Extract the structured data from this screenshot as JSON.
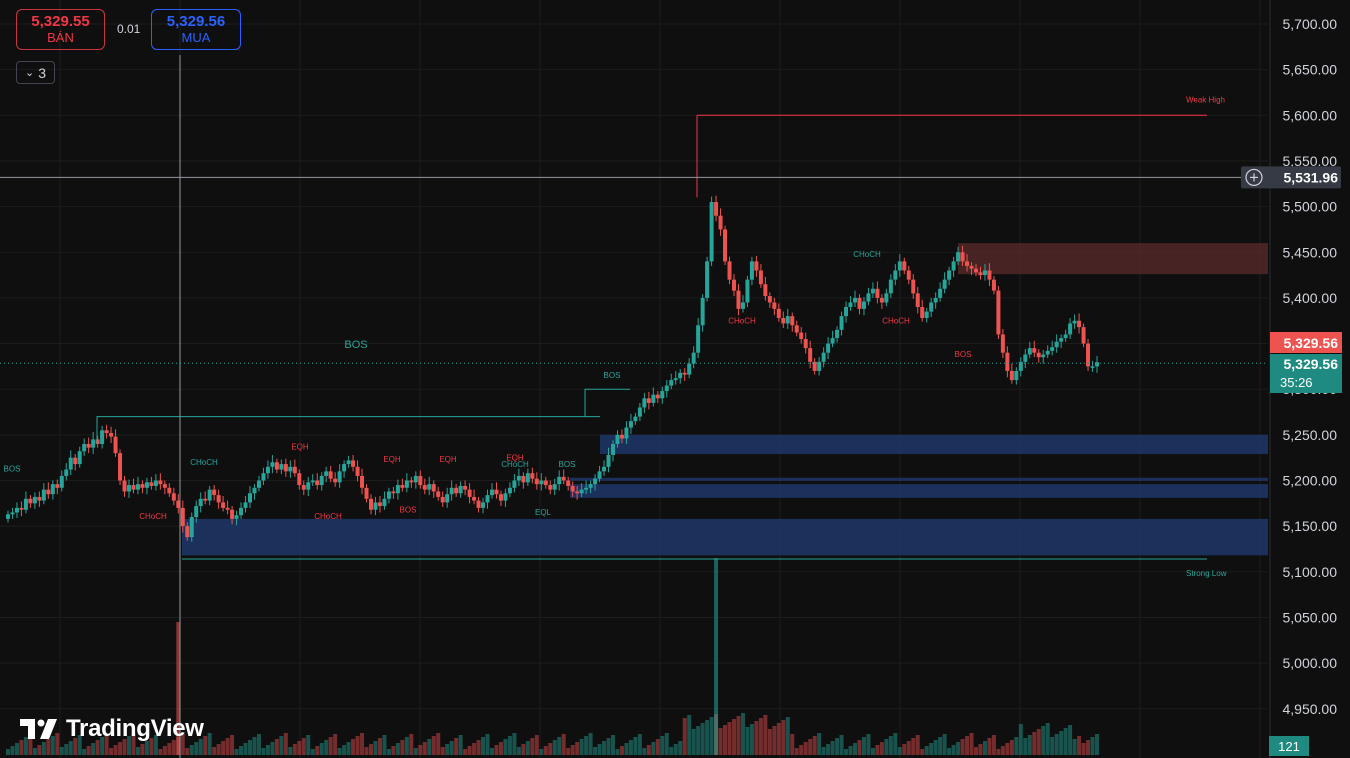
{
  "trade_panel": {
    "sell_price": "5,329.55",
    "sell_label": "BÁN",
    "spread": "0.01",
    "buy_price": "5,329.56",
    "buy_label": "MUA"
  },
  "indicator_toggle": {
    "count": "3"
  },
  "branding": {
    "logo_text": "TradingView"
  },
  "colors": {
    "background": "#0f0f0f",
    "up": "#26a69a",
    "down": "#ef5350",
    "grid": "#1c1c1c",
    "demand_zone": "#1e3a6e",
    "supply_zone": "#5c2b2b"
  },
  "chart_data": {
    "type": "candlestick",
    "ylim": [
      4920,
      5720
    ],
    "y_ticks": [
      "5,700.00",
      "5,650.00",
      "5,600.00",
      "5,550.00",
      "5,500.00",
      "5,450.00",
      "5,400.00",
      "5,350.00",
      "5,300.00",
      "5,250.00",
      "5,200.00",
      "5,150.00",
      "5,100.00",
      "5,050.00",
      "5,000.00",
      "4,950.00"
    ],
    "y_tick_values": [
      5700,
      5650,
      5600,
      5550,
      5500,
      5450,
      5400,
      5350,
      5300,
      5250,
      5200,
      5150,
      5100,
      5050,
      5000,
      4950
    ],
    "crosshair": {
      "price": 5531.96,
      "label": "5,531.96"
    },
    "last_price": {
      "bid": 5329.56,
      "ask": 5329.56,
      "bid_label": "5,329.56",
      "ask_label": "5,329.56",
      "countdown": "35:26"
    },
    "volume_badge": "121",
    "closes": [
      5163,
      5165,
      5170,
      5168,
      5180,
      5175,
      5182,
      5178,
      5190,
      5185,
      5196,
      5192,
      5205,
      5212,
      5225,
      5218,
      5232,
      5240,
      5236,
      5245,
      5240,
      5255,
      5252,
      5248,
      5230,
      5200,
      5188,
      5195,
      5190,
      5196,
      5192,
      5198,
      5194,
      5200,
      5196,
      5192,
      5186,
      5178,
      5170,
      5150,
      5138,
      5160,
      5172,
      5180,
      5178,
      5190,
      5184,
      5176,
      5170,
      5168,
      5158,
      5162,
      5170,
      5176,
      5186,
      5192,
      5200,
      5208,
      5215,
      5220,
      5212,
      5218,
      5210,
      5215,
      5208,
      5195,
      5190,
      5198,
      5200,
      5195,
      5205,
      5210,
      5202,
      5198,
      5210,
      5218,
      5222,
      5215,
      5205,
      5192,
      5180,
      5168,
      5176,
      5172,
      5180,
      5188,
      5186,
      5195,
      5192,
      5200,
      5198,
      5205,
      5195,
      5190,
      5196,
      5188,
      5182,
      5176,
      5185,
      5192,
      5186,
      5194,
      5190,
      5182,
      5178,
      5170,
      5176,
      5184,
      5190,
      5185,
      5178,
      5186,
      5192,
      5200,
      5205,
      5198,
      5208,
      5202,
      5196,
      5200,
      5195,
      5190,
      5196,
      5204,
      5200,
      5194,
      5188,
      5186,
      5190,
      5192,
      5196,
      5202,
      5210,
      5215,
      5228,
      5240,
      5250,
      5246,
      5258,
      5265,
      5270,
      5280,
      5290,
      5285,
      5294,
      5290,
      5298,
      5304,
      5310,
      5312,
      5318,
      5316,
      5328,
      5340,
      5370,
      5400,
      5440,
      5505,
      5490,
      5475,
      5440,
      5420,
      5408,
      5388,
      5395,
      5420,
      5440,
      5430,
      5415,
      5402,
      5395,
      5388,
      5378,
      5372,
      5380,
      5370,
      5362,
      5355,
      5345,
      5330,
      5320,
      5330,
      5340,
      5350,
      5356,
      5365,
      5380,
      5390,
      5395,
      5400,
      5388,
      5396,
      5405,
      5410,
      5400,
      5395,
      5405,
      5420,
      5430,
      5440,
      5430,
      5420,
      5405,
      5390,
      5378,
      5385,
      5395,
      5400,
      5410,
      5420,
      5430,
      5440,
      5450,
      5440,
      5435,
      5432,
      5428,
      5425,
      5430,
      5420,
      5408,
      5360,
      5340,
      5320,
      5310,
      5320,
      5330,
      5338,
      5345,
      5340,
      5335,
      5338,
      5342,
      5346,
      5352,
      5356,
      5360,
      5372,
      5375,
      5368,
      5350,
      5325,
      5325,
      5329.56
    ],
    "volume_spikes": [
      {
        "index": 38,
        "value": 5045,
        "direction": "down"
      },
      {
        "index": 158,
        "value": 5115,
        "direction": "up"
      }
    ],
    "zones": [
      {
        "type": "supply",
        "from": 5426,
        "to": 5460
      },
      {
        "type": "demand",
        "from": 5229,
        "to": 5250
      },
      {
        "type": "demand",
        "from": 5203,
        "to": 5200
      },
      {
        "type": "demand",
        "from": 5181,
        "to": 5196
      },
      {
        "type": "demand",
        "from": 5118,
        "to": 5158
      }
    ],
    "levels": [
      {
        "label": "Weak High",
        "price": 5600,
        "color": "#f23645"
      },
      {
        "label": "Strong Low",
        "price": 5114,
        "color": "#26a69a"
      }
    ],
    "structure_labels": [
      {
        "text": "BOS",
        "price": 5345,
        "color": "#26a69a"
      },
      {
        "text": "BOS",
        "price": 5210,
        "color": "#26a69a"
      },
      {
        "text": "BOS",
        "price": 5312,
        "color": "#26a69a"
      },
      {
        "text": "BOS",
        "price": 5215,
        "color": "#26a69a"
      },
      {
        "text": "CHoCH",
        "price": 5217,
        "color": "#26a69a"
      },
      {
        "text": "CHoCH",
        "price": 5215,
        "color": "#26a69a"
      },
      {
        "text": "CHoCH",
        "price": 5445,
        "color": "#26a69a"
      },
      {
        "text": "CHoCH",
        "price": 5158,
        "color": "#f23645"
      },
      {
        "text": "CHoCH",
        "price": 5158,
        "color": "#f23645"
      },
      {
        "text": "CHoCH",
        "price": 5372,
        "color": "#f23645"
      },
      {
        "text": "CHoCH",
        "price": 5372,
        "color": "#f23645"
      },
      {
        "text": "EQH",
        "price": 5234,
        "color": "#f23645"
      },
      {
        "text": "EQH",
        "price": 5220,
        "color": "#f23645"
      },
      {
        "text": "EQH",
        "price": 5220,
        "color": "#f23645"
      },
      {
        "text": "EQH",
        "price": 5222,
        "color": "#f23645"
      },
      {
        "text": "EQL",
        "price": 5162,
        "color": "#26a69a"
      },
      {
        "text": "BOS",
        "price": 5165,
        "color": "#f23645"
      },
      {
        "text": "BOS",
        "price": 5335,
        "color": "#f23645"
      }
    ]
  }
}
